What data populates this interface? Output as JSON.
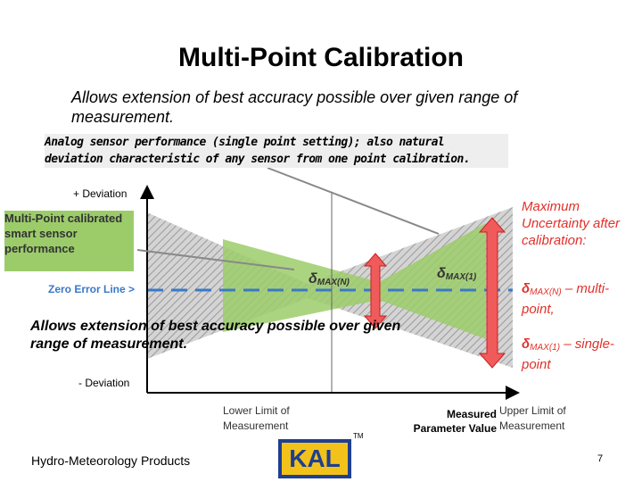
{
  "header": {
    "title": "Multi-Point Calibration",
    "subtitle": "Allows extension of best accuracy possible over given range of measurement."
  },
  "callout": "Analog sensor performance (single point setting); also natural deviation characteristic of any sensor from one point calibration.",
  "diagram": {
    "plus_deviation": "+ Deviation",
    "minus_deviation": "- Deviation",
    "multipoint_label": "Multi-Point calibrated smart sensor performance",
    "zero_line_label": "Zero Error Line >",
    "delta_n": {
      "symbol": "δ",
      "sub": "MAX(N)"
    },
    "delta_1": {
      "symbol": "δ",
      "sub": "MAX(1)"
    },
    "annotation": "Allows extension of best accuracy possible over given range of measurement.",
    "lower_limit": "Lower Limit of Measurement",
    "measured": "Measured Parameter Value",
    "upper_limit": "Upper Limit of Measurement"
  },
  "legend": {
    "heading": "Maximum Uncertainty after calibration:",
    "item_n": {
      "symbol": "δ",
      "sub": "MAX(N)",
      "text": " – multi-point,"
    },
    "item_1": {
      "symbol": "δ",
      "sub": "MAX(1)",
      "text": " – single-point"
    }
  },
  "footer": {
    "left": "Hydro-Meteorology Products",
    "logo": "KAL",
    "trademark": "TM",
    "page": "7"
  }
}
